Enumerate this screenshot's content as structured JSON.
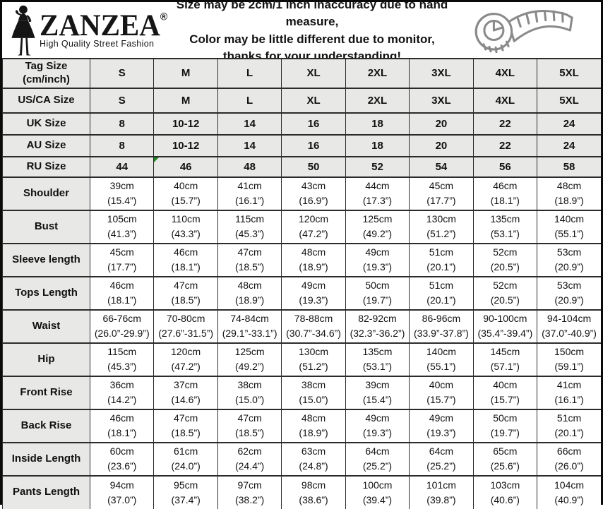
{
  "colors": {
    "page_bg": "#ffffff",
    "border_dark": "#0a0a0a",
    "grid_line": "#2b2b2b",
    "gray_fill": "#e8e8e7",
    "text_black": "#111111",
    "logo_black": "#151515",
    "tape_gray": "#8a8a8a",
    "marker_green": "#1f8a1f"
  },
  "header": {
    "logo": {
      "brand": "ZANZEA",
      "registered": "®",
      "tagline": "High Quality Street Fashion"
    },
    "notice_lines": [
      "Size may be 2cm/1 inch inaccuracy due to hand measure,",
      "Color may be little different due to monitor,",
      "thanks for your understanding!"
    ]
  },
  "table": {
    "size_columns": [
      "S",
      "M",
      "L",
      "XL",
      "2XL",
      "3XL",
      "4XL",
      "5XL"
    ],
    "note_marker": {
      "row": 4,
      "col": 1
    },
    "rows": [
      {
        "label": "Tag Size\n(cm/inch)",
        "kind": "size",
        "values": [
          "S",
          "M",
          "L",
          "XL",
          "2XL",
          "3XL",
          "4XL",
          "5XL"
        ]
      },
      {
        "label": "US/CA Size",
        "kind": "size",
        "values": [
          "S",
          "M",
          "L",
          "XL",
          "2XL",
          "3XL",
          "4XL",
          "5XL"
        ]
      },
      {
        "label": "UK Size",
        "kind": "size",
        "values": [
          "8",
          "10-12",
          "14",
          "16",
          "18",
          "20",
          "22",
          "24"
        ]
      },
      {
        "label": "AU Size",
        "kind": "size",
        "values": [
          "8",
          "10-12",
          "14",
          "16",
          "18",
          "20",
          "22",
          "24"
        ]
      },
      {
        "label": "RU Size",
        "kind": "size",
        "values": [
          "44",
          "46",
          "48",
          "50",
          "52",
          "54",
          "56",
          "58"
        ]
      },
      {
        "label": "Shoulder",
        "kind": "measure",
        "values": [
          "39cm\n(15.4”)",
          "40cm\n(15.7”)",
          "41cm\n(16.1”)",
          "43cm\n(16.9”)",
          "44cm\n(17.3”)",
          "45cm\n(17.7”)",
          "46cm\n(18.1”)",
          "48cm\n(18.9”)"
        ]
      },
      {
        "label": "Bust",
        "kind": "measure",
        "values": [
          "105cm\n(41.3”)",
          "110cm\n(43.3”)",
          "115cm\n(45.3”)",
          "120cm\n(47.2”)",
          "125cm\n(49.2”)",
          "130cm\n(51.2”)",
          "135cm\n(53.1”)",
          "140cm\n(55.1”)"
        ]
      },
      {
        "label": "Sleeve length",
        "kind": "measure",
        "values": [
          "45cm\n(17.7”)",
          "46cm\n(18.1”)",
          "47cm\n(18.5”)",
          "48cm\n(18.9”)",
          "49cm\n(19.3”)",
          "51cm\n(20.1”)",
          "52cm\n(20.5”)",
          "53cm\n(20.9”)"
        ]
      },
      {
        "label": "Tops Length",
        "kind": "measure",
        "values": [
          "46cm\n(18.1”)",
          "47cm\n(18.5”)",
          "48cm\n(18.9”)",
          "49cm\n(19.3”)",
          "50cm\n(19.7”)",
          "51cm\n(20.1”)",
          "52cm\n(20.5”)",
          "53cm\n(20.9”)"
        ]
      },
      {
        "label": "Waist",
        "kind": "measure",
        "values": [
          "66-76cm\n(26.0”-29.9”)",
          "70-80cm\n(27.6”-31.5”)",
          "74-84cm\n(29.1”-33.1”)",
          "78-88cm\n(30.7”-34.6”)",
          "82-92cm\n(32.3”-36.2”)",
          "86-96cm\n(33.9”-37.8”)",
          "90-100cm\n(35.4”-39.4”)",
          "94-104cm\n(37.0”-40.9”)"
        ]
      },
      {
        "label": "Hip",
        "kind": "measure",
        "values": [
          "115cm\n(45.3”)",
          "120cm\n(47.2”)",
          "125cm\n(49.2”)",
          "130cm\n(51.2”)",
          "135cm\n(53.1”)",
          "140cm\n(55.1”)",
          "145cm\n(57.1”)",
          "150cm\n(59.1”)"
        ]
      },
      {
        "label": "Front Rise",
        "kind": "measure",
        "values": [
          "36cm\n(14.2”)",
          "37cm\n(14.6”)",
          "38cm\n(15.0”)",
          "38cm\n(15.0”)",
          "39cm\n(15.4”)",
          "40cm\n(15.7”)",
          "40cm\n(15.7”)",
          "41cm\n(16.1”)"
        ]
      },
      {
        "label": "Back Rise",
        "kind": "measure",
        "values": [
          "46cm\n(18.1”)",
          "47cm\n(18.5”)",
          "47cm\n(18.5”)",
          "48cm\n(18.9”)",
          "49cm\n(19.3”)",
          "49cm\n(19.3”)",
          "50cm\n(19.7”)",
          "51cm\n(20.1”)"
        ]
      },
      {
        "label": "Inside Length",
        "kind": "measure",
        "values": [
          "60cm\n(23.6”)",
          "61cm\n(24.0”)",
          "62cm\n(24.4”)",
          "63cm\n(24.8”)",
          "64cm\n(25.2”)",
          "64cm\n(25.2”)",
          "65cm\n(25.6”)",
          "66cm\n(26.0”)"
        ]
      },
      {
        "label": "Pants Length",
        "kind": "measure",
        "values": [
          "94cm\n(37.0”)",
          "95cm\n(37.4”)",
          "97cm\n(38.2”)",
          "98cm\n(38.6”)",
          "100cm\n(39.4”)",
          "101cm\n(39.8”)",
          "103cm\n(40.6”)",
          "104cm\n(40.9”)"
        ]
      }
    ]
  }
}
